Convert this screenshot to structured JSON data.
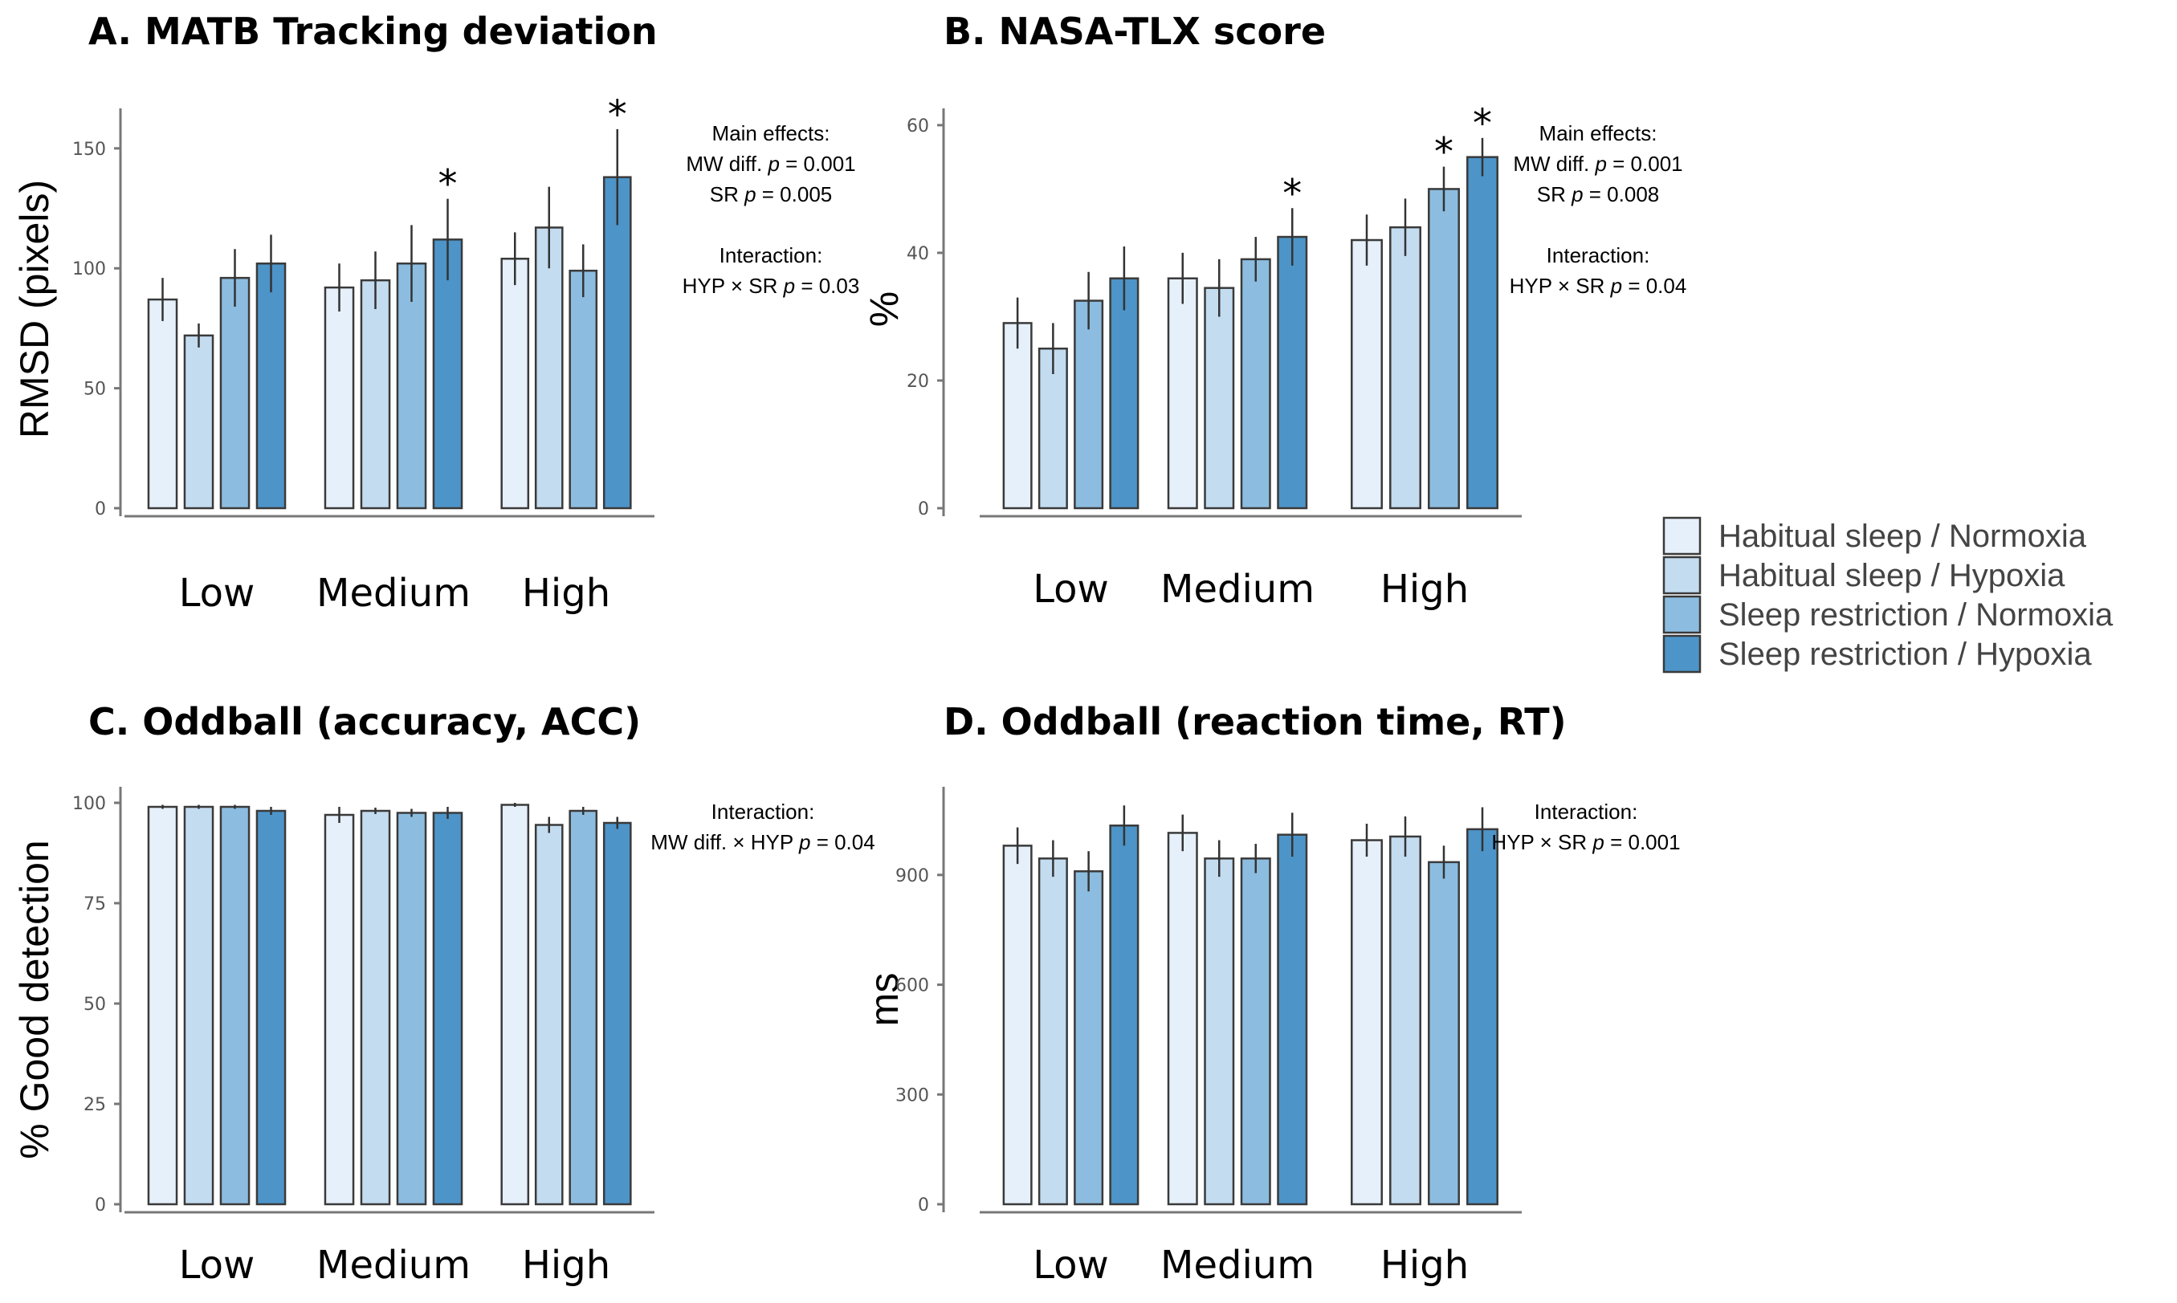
{
  "series_names": [
    "Habitual sleep / Normoxia",
    "Habitual sleep / Hypoxia",
    "Sleep restriction / Normoxia",
    "Sleep restriction / Hypoxia"
  ],
  "series_colors": [
    "#e6f0fa",
    "#c4dcf0",
    "#8cbde0",
    "#4d94c8"
  ],
  "chart_data": [
    {
      "type": "bar",
      "title": "A. MATB Tracking deviation",
      "ylabel": "RMSD (pixels)",
      "xlabel": "",
      "categories": [
        "Low",
        "Medium",
        "High"
      ],
      "ylim": [
        0,
        165
      ],
      "yticks": [
        0,
        50,
        100,
        150
      ],
      "series": [
        {
          "name": "Habitual sleep / Normoxia",
          "values": [
            87,
            92,
            104
          ],
          "errors": [
            9,
            10,
            11
          ]
        },
        {
          "name": "Habitual sleep / Hypoxia",
          "values": [
            72,
            95,
            117
          ],
          "errors": [
            5,
            12,
            17
          ]
        },
        {
          "name": "Sleep restriction / Normoxia",
          "values": [
            96,
            102,
            99
          ],
          "errors": [
            12,
            16,
            11
          ]
        },
        {
          "name": "Sleep restriction / Hypoxia",
          "values": [
            102,
            112,
            138
          ],
          "errors": [
            12,
            17,
            20
          ]
        }
      ],
      "stars": [
        {
          "category": 1,
          "series": 3,
          "label": "*"
        },
        {
          "category": 2,
          "series": 3,
          "label": "*"
        }
      ],
      "annotation_lines": [
        "Main effects:",
        "MW diff. p = 0.001",
        "SR p = 0.005",
        "",
        "Interaction:",
        "HYP × SR p = 0.03"
      ]
    },
    {
      "type": "bar",
      "title": "B. NASA-TLX score",
      "ylabel": "%",
      "xlabel": "",
      "categories": [
        "Low",
        "Medium",
        "High"
      ],
      "ylim": [
        0,
        62
      ],
      "yticks": [
        0,
        20,
        40,
        60
      ],
      "series": [
        {
          "name": "Habitual sleep / Normoxia",
          "values": [
            29,
            36,
            42
          ],
          "errors": [
            4,
            4,
            4
          ]
        },
        {
          "name": "Habitual sleep / Hypoxia",
          "values": [
            25,
            34.5,
            44
          ],
          "errors": [
            4,
            4.5,
            4.5
          ]
        },
        {
          "name": "Sleep restriction / Normoxia",
          "values": [
            32.5,
            39,
            50
          ],
          "errors": [
            4.5,
            3.5,
            3.5
          ]
        },
        {
          "name": "Sleep restriction / Hypoxia",
          "values": [
            36,
            42.5,
            55
          ],
          "errors": [
            5,
            4.5,
            3
          ]
        }
      ],
      "stars": [
        {
          "category": 1,
          "series": 3,
          "label": "*"
        },
        {
          "category": 2,
          "series": 2,
          "label": "*"
        },
        {
          "category": 2,
          "series": 3,
          "label": "*"
        }
      ],
      "annotation_lines": [
        "Main effects:",
        "MW diff. p = 0.001",
        "SR p = 0.008",
        "",
        "Interaction:",
        "HYP × SR p = 0.04"
      ]
    },
    {
      "type": "bar",
      "title": "C. Oddball (accuracy, ACC)",
      "ylabel": "% Good detection",
      "xlabel": "",
      "categories": [
        "Low",
        "Medium",
        "High"
      ],
      "ylim": [
        0,
        103
      ],
      "yticks": [
        0,
        25,
        50,
        75,
        100
      ],
      "series": [
        {
          "name": "Habitual sleep / Normoxia",
          "values": [
            99,
            97,
            99.5
          ],
          "errors": [
            0.5,
            2,
            0.5
          ]
        },
        {
          "name": "Habitual sleep / Hypoxia",
          "values": [
            99,
            98,
            94.5
          ],
          "errors": [
            0.5,
            0.8,
            2
          ]
        },
        {
          "name": "Sleep restriction / Normoxia",
          "values": [
            99,
            97.5,
            98
          ],
          "errors": [
            0.5,
            1,
            1
          ]
        },
        {
          "name": "Sleep restriction / Hypoxia",
          "values": [
            98,
            97.5,
            95
          ],
          "errors": [
            1,
            1.5,
            1.5
          ]
        }
      ],
      "stars": [],
      "annotation_lines": [
        "Interaction:",
        "MW diff. × HYP p = 0.04"
      ]
    },
    {
      "type": "bar",
      "title": "D. Oddball (reaction time, RT)",
      "ylabel": "ms",
      "xlabel": "",
      "categories": [
        "Low",
        "Medium",
        "High"
      ],
      "ylim": [
        0,
        1130
      ],
      "yticks": [
        0,
        300,
        600,
        900
      ],
      "series": [
        {
          "name": "Habitual sleep / Normoxia",
          "values": [
            980,
            1015,
            995
          ],
          "errors": [
            50,
            50,
            45
          ]
        },
        {
          "name": "Habitual sleep / Hypoxia",
          "values": [
            945,
            945,
            1005
          ],
          "errors": [
            50,
            50,
            55
          ]
        },
        {
          "name": "Sleep restriction / Normoxia",
          "values": [
            910,
            945,
            935
          ],
          "errors": [
            55,
            40,
            45
          ]
        },
        {
          "name": "Sleep restriction / Hypoxia",
          "values": [
            1035,
            1010,
            1025
          ],
          "errors": [
            55,
            60,
            60
          ]
        }
      ],
      "stars": [],
      "annotation_lines": [
        "Interaction:",
        "HYP × SR p = 0.001"
      ]
    }
  ]
}
